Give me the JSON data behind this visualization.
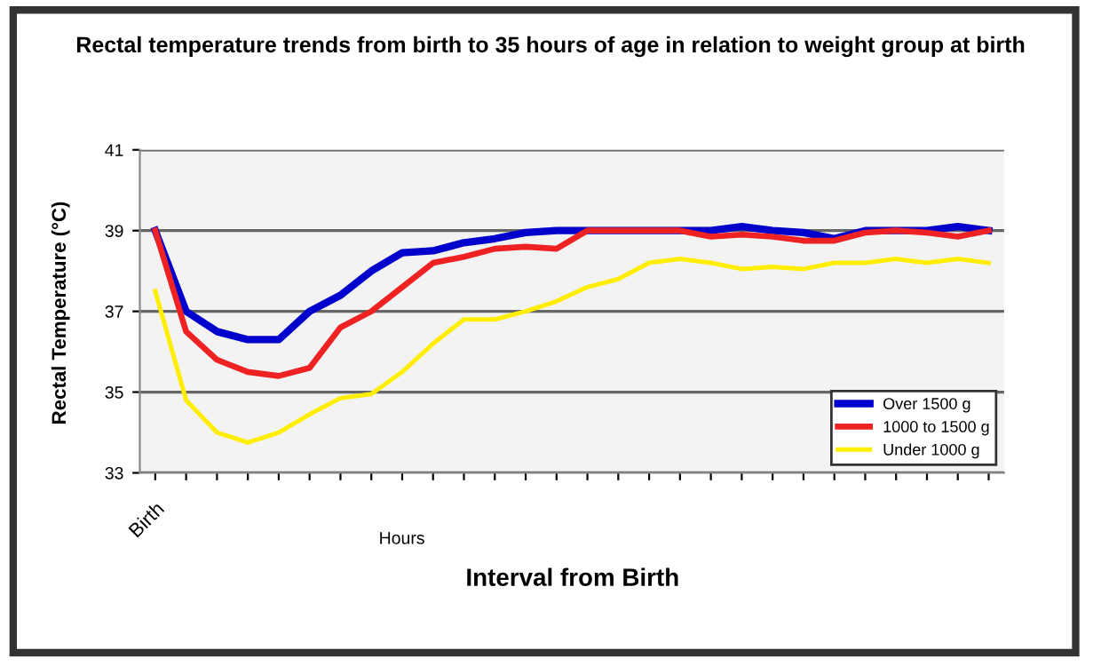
{
  "chart_data": {
    "type": "line",
    "title": "Rectal temperature trends from birth to 35 hours of age in relation to weight group at birth",
    "xlabel": "Interval from Birth",
    "ylabel": "Rectal Temperature (°C)",
    "annotations": [
      "Hours"
    ],
    "categories": [
      "Birth",
      null,
      null,
      null,
      null,
      null,
      null,
      null,
      null,
      null,
      null,
      null,
      null,
      null,
      null,
      null,
      null,
      null,
      null,
      null,
      null,
      null,
      null,
      null,
      null,
      null,
      null,
      null
    ],
    "series": [
      {
        "name": "Over 1500 g",
        "color": "#0000cc",
        "values": [
          39,
          37.0,
          36.5,
          36.3,
          36.3,
          37.0,
          37.4,
          38.0,
          38.45,
          38.5,
          38.7,
          38.8,
          38.95,
          39,
          39,
          39,
          39,
          39,
          39,
          39.1,
          39,
          38.95,
          38.8,
          39,
          39,
          39,
          39.1,
          39
        ]
      },
      {
        "name": "1000 to 1500 g",
        "color": "#ee2222",
        "values": [
          39,
          36.5,
          35.8,
          35.5,
          35.4,
          35.6,
          36.6,
          37.0,
          37.6,
          38.2,
          38.35,
          38.55,
          38.6,
          38.55,
          39,
          39,
          39,
          39,
          38.85,
          38.9,
          38.85,
          38.75,
          38.75,
          38.95,
          39,
          38.95,
          38.85,
          39
        ]
      },
      {
        "name": "Under 1000 g",
        "color": "#ffee00",
        "values": [
          37.5,
          34.8,
          34.0,
          33.75,
          34.0,
          34.45,
          34.85,
          34.95,
          35.5,
          36.2,
          36.8,
          36.8,
          37.0,
          37.25,
          37.6,
          37.8,
          38.2,
          38.3,
          38.2,
          38.05,
          38.1,
          38.05,
          38.2,
          38.2,
          38.3,
          38.2,
          38.3,
          38.2
        ]
      }
    ],
    "ylim": [
      33,
      41
    ],
    "yticks": [
      33,
      35,
      37,
      39,
      41
    ],
    "grid": "y",
    "legend": "bottom right",
    "marker": "none",
    "line_style": "solid"
  }
}
